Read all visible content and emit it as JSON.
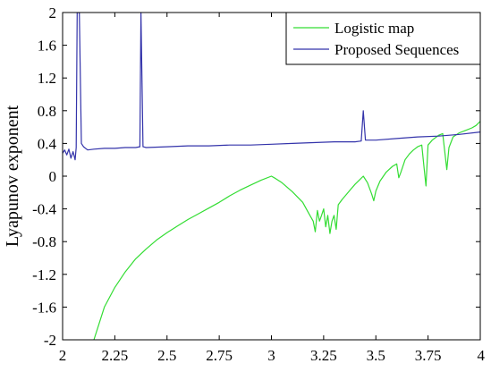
{
  "chart_data": {
    "type": "line",
    "title": "",
    "xlabel": "",
    "ylabel": "Lyapunov exponent",
    "xlim": [
      2,
      4
    ],
    "ylim": [
      -2,
      2
    ],
    "xticks": [
      2,
      2.25,
      2.5,
      2.75,
      3,
      3.25,
      3.5,
      3.75,
      4
    ],
    "xtick_labels": [
      "2",
      "2.25",
      "2.5",
      "2.75",
      "3",
      "3.25",
      "3.5",
      "3.75",
      "4"
    ],
    "yticks": [
      2,
      1.6,
      1.2,
      0.8,
      0.4,
      0,
      -0.4,
      -0.8,
      -1.2,
      -1.6,
      -2
    ],
    "ytick_labels": [
      "2",
      "1.6",
      "1.2",
      "0.8",
      "0.4",
      "0",
      "-0.4",
      "-0.8",
      "-1.2",
      "-1.6",
      "-2"
    ],
    "grid": false,
    "legend_position": "top-right",
    "series": [
      {
        "name": "Logistic map",
        "color": "#33dd33",
        "points": [
          [
            2.15,
            -2.0
          ],
          [
            2.2,
            -1.6
          ],
          [
            2.25,
            -1.36
          ],
          [
            2.3,
            -1.17
          ],
          [
            2.35,
            -1.01
          ],
          [
            2.4,
            -0.89
          ],
          [
            2.45,
            -0.78
          ],
          [
            2.5,
            -0.69
          ],
          [
            2.55,
            -0.61
          ],
          [
            2.6,
            -0.53
          ],
          [
            2.65,
            -0.46
          ],
          [
            2.7,
            -0.39
          ],
          [
            2.75,
            -0.32
          ],
          [
            2.8,
            -0.24
          ],
          [
            2.85,
            -0.17
          ],
          [
            2.9,
            -0.11
          ],
          [
            2.95,
            -0.05
          ],
          [
            3.0,
            0.0
          ],
          [
            3.02,
            -0.03
          ],
          [
            3.05,
            -0.08
          ],
          [
            3.1,
            -0.19
          ],
          [
            3.15,
            -0.32
          ],
          [
            3.18,
            -0.46
          ],
          [
            3.2,
            -0.55
          ],
          [
            3.21,
            -0.68
          ],
          [
            3.22,
            -0.42
          ],
          [
            3.23,
            -0.55
          ],
          [
            3.24,
            -0.48
          ],
          [
            3.25,
            -0.4
          ],
          [
            3.26,
            -0.62
          ],
          [
            3.27,
            -0.48
          ],
          [
            3.28,
            -0.7
          ],
          [
            3.29,
            -0.55
          ],
          [
            3.3,
            -0.48
          ],
          [
            3.31,
            -0.65
          ],
          [
            3.32,
            -0.35
          ],
          [
            3.34,
            -0.28
          ],
          [
            3.36,
            -0.22
          ],
          [
            3.38,
            -0.16
          ],
          [
            3.4,
            -0.1
          ],
          [
            3.42,
            -0.05
          ],
          [
            3.44,
            0.0
          ],
          [
            3.46,
            -0.08
          ],
          [
            3.48,
            -0.22
          ],
          [
            3.49,
            -0.3
          ],
          [
            3.5,
            -0.18
          ],
          [
            3.52,
            -0.06
          ],
          [
            3.55,
            0.05
          ],
          [
            3.58,
            0.12
          ],
          [
            3.6,
            0.15
          ],
          [
            3.61,
            -0.02
          ],
          [
            3.62,
            0.05
          ],
          [
            3.64,
            0.2
          ],
          [
            3.66,
            0.27
          ],
          [
            3.68,
            0.32
          ],
          [
            3.7,
            0.36
          ],
          [
            3.72,
            0.38
          ],
          [
            3.73,
            0.12
          ],
          [
            3.74,
            -0.12
          ],
          [
            3.75,
            0.38
          ],
          [
            3.77,
            0.44
          ],
          [
            3.79,
            0.48
          ],
          [
            3.8,
            0.5
          ],
          [
            3.82,
            0.52
          ],
          [
            3.83,
            0.3
          ],
          [
            3.84,
            0.08
          ],
          [
            3.85,
            0.35
          ],
          [
            3.87,
            0.48
          ],
          [
            3.9,
            0.53
          ],
          [
            3.93,
            0.56
          ],
          [
            3.96,
            0.59
          ],
          [
            3.98,
            0.62
          ],
          [
            4.0,
            0.67
          ]
        ]
      },
      {
        "name": "Proposed Sequences",
        "color": "#3333aa",
        "points": [
          [
            2.0,
            0.28
          ],
          [
            2.01,
            0.32
          ],
          [
            2.02,
            0.26
          ],
          [
            2.03,
            0.33
          ],
          [
            2.04,
            0.22
          ],
          [
            2.05,
            0.3
          ],
          [
            2.06,
            0.2
          ],
          [
            2.065,
            0.35
          ],
          [
            2.07,
            2.0
          ],
          [
            2.08,
            2.0
          ],
          [
            2.09,
            0.4
          ],
          [
            2.1,
            0.36
          ],
          [
            2.12,
            0.32
          ],
          [
            2.15,
            0.33
          ],
          [
            2.2,
            0.34
          ],
          [
            2.25,
            0.34
          ],
          [
            2.3,
            0.35
          ],
          [
            2.35,
            0.35
          ],
          [
            2.37,
            0.36
          ],
          [
            2.375,
            2.0
          ],
          [
            2.385,
            0.36
          ],
          [
            2.4,
            0.35
          ],
          [
            2.5,
            0.36
          ],
          [
            2.6,
            0.37
          ],
          [
            2.7,
            0.37
          ],
          [
            2.8,
            0.38
          ],
          [
            2.9,
            0.38
          ],
          [
            3.0,
            0.39
          ],
          [
            3.1,
            0.4
          ],
          [
            3.2,
            0.41
          ],
          [
            3.3,
            0.42
          ],
          [
            3.4,
            0.42
          ],
          [
            3.43,
            0.43
          ],
          [
            3.44,
            0.8
          ],
          [
            3.45,
            0.44
          ],
          [
            3.5,
            0.44
          ],
          [
            3.6,
            0.46
          ],
          [
            3.7,
            0.48
          ],
          [
            3.8,
            0.49
          ],
          [
            3.9,
            0.51
          ],
          [
            4.0,
            0.54
          ]
        ]
      }
    ]
  }
}
